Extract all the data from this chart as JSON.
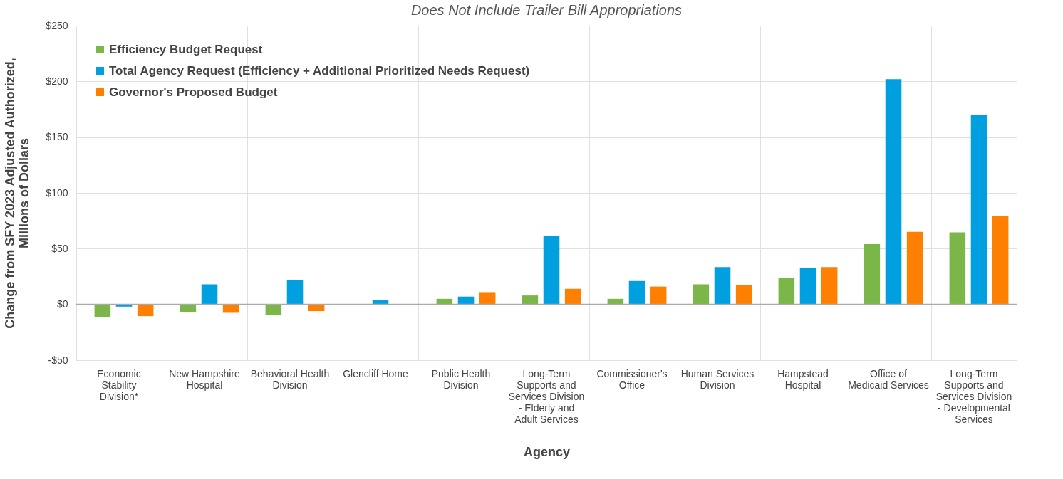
{
  "chart_data": {
    "type": "bar",
    "title": "Does Not Include Trailer Bill Appropriations",
    "xlabel": "Agency",
    "ylabel": "Change from SFY 2023 Adjusted Authorized, Millions of Dollars",
    "categories": [
      "Economic Stability Division*",
      "New Hampshire Hospital",
      "Behavioral Health Division",
      "Glencliff Home",
      "Public Health Division",
      "Long-Term Supports and Services Division - Elderly and Adult Services",
      "Commissioner's Office",
      "Human Services Division",
      "Hampstead Hospital",
      "Office of Medicaid Services",
      "Long-Term Supports and Services Division - Developmental Services"
    ],
    "series": [
      {
        "name": "Efficiency Budget Request",
        "color": "#7ab648",
        "values": [
          -11.5,
          -7,
          -9.5,
          0,
          5,
          8,
          5,
          18,
          24,
          54,
          64.5
        ]
      },
      {
        "name": "Total Agency Request (Efficiency + Additional Prioritized Needs Request)",
        "color": "#009fdf",
        "values": [
          -2,
          18,
          22,
          4,
          7,
          61,
          21,
          33.5,
          33,
          202,
          170
        ]
      },
      {
        "name": "Governor's Proposed Budget",
        "color": "#ff8000",
        "values": [
          -10.5,
          -7.5,
          -6,
          0,
          11,
          14,
          16,
          17.5,
          33.5,
          65,
          79
        ]
      }
    ],
    "ylim": [
      -50,
      250
    ],
    "yticks": [
      {
        "value": -50,
        "label": "-$50"
      },
      {
        "value": 0,
        "label": "$0"
      },
      {
        "value": 50,
        "label": "$50"
      },
      {
        "value": 100,
        "label": "$100"
      },
      {
        "value": 150,
        "label": "$150"
      },
      {
        "value": 200,
        "label": "$200"
      },
      {
        "value": 250,
        "label": "$250"
      }
    ],
    "grid": true,
    "legend": "top left"
  }
}
